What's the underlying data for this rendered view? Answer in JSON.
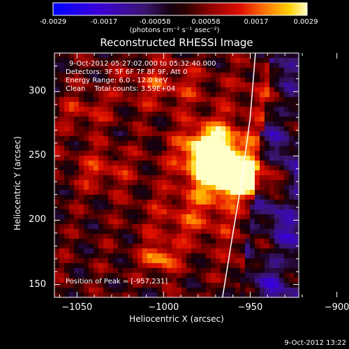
{
  "colorbar": {
    "ticks": [
      "-0.0029",
      "-0.0017",
      "-0.00058",
      "0.00058",
      "0.0017",
      "0.0029"
    ],
    "units_label": "(photons cm⁻² s⁻¹ asec⁻²)"
  },
  "title": "Reconstructed RHESSI Image",
  "annotations": {
    "time_range": "9-Oct-2012 05:27:02.000 to 05:32:40.000",
    "detectors": "Detectors: 3F 5F 6F 7F 8F 9F, Att 0",
    "energy": "Energy Range: 6.0 - 12.0 keV",
    "method": "Clean    Total counts: 3.59E+04",
    "peak": "Position of Peak = [-957,231]"
  },
  "footer_date": "9-Oct-2012 13:22",
  "chart_data": {
    "type": "heatmap",
    "title": "Reconstructed RHESSI Image",
    "xlabel": "Heliocentric X (arcsec)",
    "ylabel": "Heliocentric Y (arcsec)",
    "xlim": [
      -1063,
      -922
    ],
    "ylim": [
      140,
      330
    ],
    "xticks": [
      -1050,
      -1000,
      -950,
      -900
    ],
    "yticks": [
      150,
      200,
      250,
      300
    ],
    "xtick_labels": [
      "−1050",
      "−1000",
      "−950",
      "−900"
    ],
    "ytick_labels": [
      "150",
      "200",
      "250",
      "300"
    ],
    "colorbar_range": [
      -0.0029,
      0.0029
    ],
    "peak_position": [
      -957,
      231
    ],
    "limb_curve": {
      "x": [
        -947,
        -950,
        -955,
        -960,
        -966
      ],
      "y": [
        330,
        280,
        230,
        190,
        140
      ]
    },
    "sources": [
      {
        "x": -973,
        "y": 253,
        "amp": 1.0,
        "sx": 9,
        "sy": 12
      },
      {
        "x": -957,
        "y": 231,
        "amp": 1.0,
        "sx": 12,
        "sy": 8
      },
      {
        "x": -966,
        "y": 245,
        "amp": 0.7,
        "sx": 18,
        "sy": 22
      },
      {
        "x": -1002,
        "y": 170,
        "amp": 0.65,
        "sx": 7,
        "sy": 8
      },
      {
        "x": -1035,
        "y": 240,
        "amp": 0.35,
        "sx": 12,
        "sy": 12
      },
      {
        "x": -1045,
        "y": 285,
        "amp": 0.3,
        "sx": 10,
        "sy": 10
      },
      {
        "x": -985,
        "y": 200,
        "amp": 0.35,
        "sx": 18,
        "sy": 14
      },
      {
        "x": -935,
        "y": 300,
        "amp": 0.3,
        "sx": 14,
        "sy": 14
      },
      {
        "x": -1000,
        "y": 305,
        "amp": 0.35,
        "sx": 18,
        "sy": 12
      },
      {
        "x": -950,
        "y": 170,
        "amp": 0.25,
        "sx": 10,
        "sy": 10
      }
    ]
  }
}
